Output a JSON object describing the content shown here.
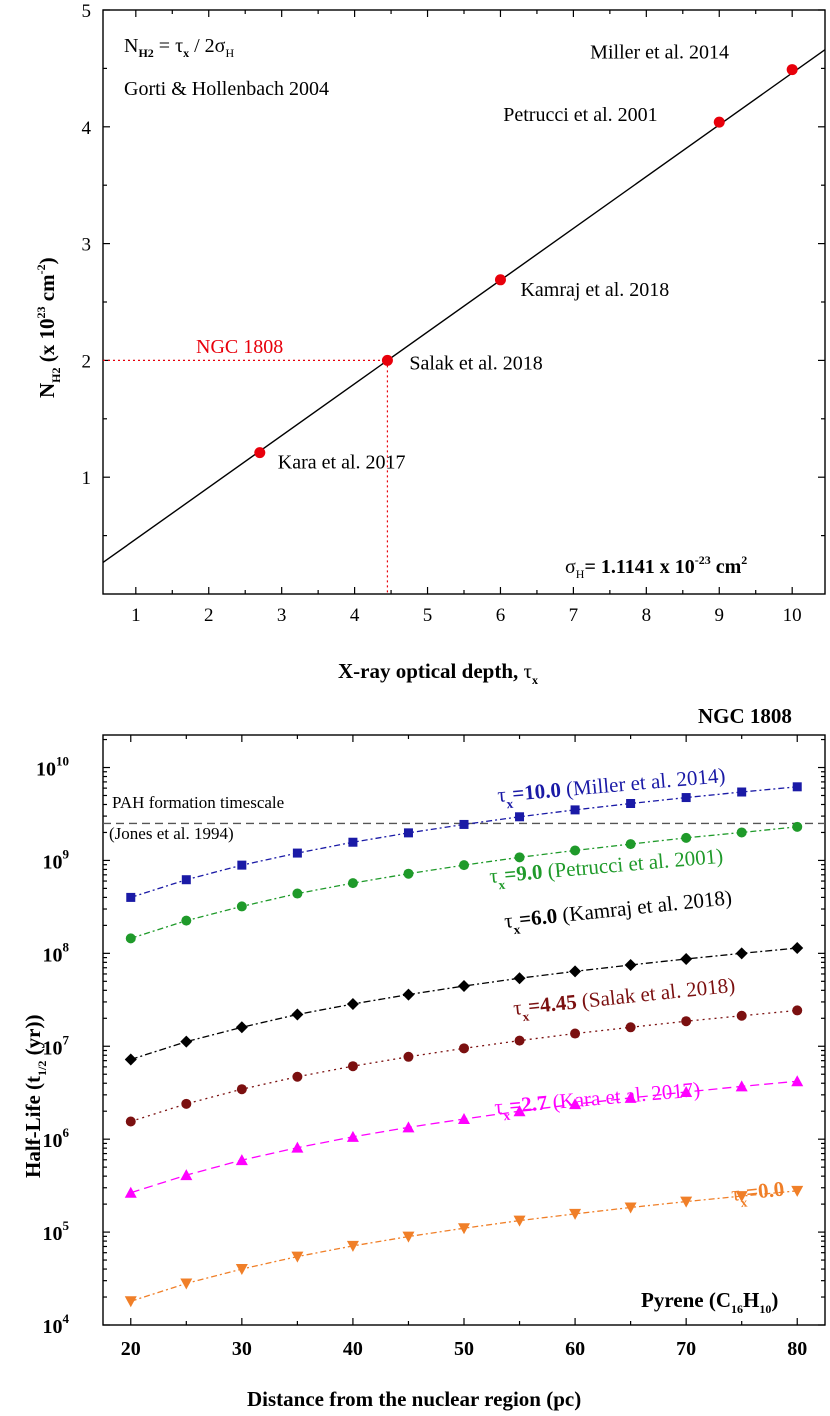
{
  "chart_data": [
    {
      "type": "scatter",
      "xlabel_main": "X-ray optical depth, ",
      "xlabel_symbol": "τ",
      "xlabel_sub": "x",
      "ylabel": {
        "n": "N",
        "sub": "H2",
        "mid": " (x 10",
        "sup": "23",
        "unit": " cm",
        "unitsup": "-2",
        "close": ")"
      },
      "xlim": [
        0.55,
        10.45
      ],
      "ylim": [
        0,
        5
      ],
      "xticks": [
        "1",
        "2",
        "3",
        "4",
        "5",
        "6",
        "7",
        "8",
        "9",
        "10"
      ],
      "yticks": [
        "1",
        "2",
        "3",
        "4",
        "5"
      ],
      "formula": {
        "lhs": "N",
        "lhs_sub": "H2",
        "eq": " = τ",
        "tau_sub": "x",
        "div": " / 2σ",
        "sigma_sub": "H"
      },
      "formula_ref": "Gorti & Hollenbach 2004",
      "sigma_note": {
        "sym": "σ",
        "sub": "H",
        "eq": "= 1.1141 x 10",
        "sup": "-23",
        "unit": " cm",
        "unitsup": "2"
      },
      "fit_line": {
        "x": [
          0.55,
          10.45
        ],
        "y": [
          0.27,
          4.66
        ]
      },
      "points": [
        {
          "x": 2.7,
          "y": 1.21,
          "label": "Kara et al. 2017"
        },
        {
          "x": 4.45,
          "y": 2.0,
          "label": "Salak et al. 2018"
        },
        {
          "x": 6.0,
          "y": 2.69,
          "label": "Kamraj et al. 2018"
        },
        {
          "x": 9.0,
          "y": 4.04,
          "label": "Petrucci et al. 2001"
        },
        {
          "x": 10.0,
          "y": 4.49,
          "label": "Miller et al. 2014"
        }
      ],
      "highlight": {
        "x": 4.45,
        "y": 2.0,
        "label": "NGC 1808",
        "color": "#e8000b"
      },
      "point_color": "#e8000b"
    },
    {
      "type": "line",
      "title": "NGC 1808",
      "xlabel": "Distance from the nuclear region (pc)",
      "ylabel": {
        "pre": "Half-Life (t",
        "sub": "1/2",
        "post": " (yr))"
      },
      "yscale": "log",
      "xlim": [
        17.5,
        82.5
      ],
      "ylim_log10": [
        4,
        10.35
      ],
      "xticks": [
        "20",
        "30",
        "40",
        "50",
        "60",
        "70",
        "80"
      ],
      "yticks": [
        {
          "base": "10",
          "exp": "4"
        },
        {
          "base": "10",
          "exp": "5"
        },
        {
          "base": "10",
          "exp": "6"
        },
        {
          "base": "10",
          "exp": "7"
        },
        {
          "base": "10",
          "exp": "8"
        },
        {
          "base": "10",
          "exp": "9"
        },
        {
          "base": "10",
          "exp": "10"
        }
      ],
      "x": [
        20,
        25,
        30,
        35,
        40,
        45,
        50,
        55,
        60,
        65,
        70,
        75,
        80
      ],
      "reference_line": {
        "value": 2500000000,
        "label1": "PAH formation timescale",
        "label2": "(Jones et al. 1994)"
      },
      "molecule": {
        "pre": "Pyrene (C",
        "sub1": "16",
        "mid": "H",
        "sub2": "10",
        "post": ")"
      },
      "series": [
        {
          "name": "Miller et al. 2014",
          "tau": "=10.0",
          "label": " (Miller et al. 2014)",
          "color": "#1a1aa6",
          "marker": "square",
          "dash": "6 3 2 3",
          "values": [
            400000000.0,
            620000000.0,
            890000000.0,
            1200000000.0,
            1570000000.0,
            1980000000.0,
            2440000000.0,
            2950000000.0,
            3500000000.0,
            4100000000.0,
            4750000000.0,
            5450000000.0,
            6200000000.0
          ]
        },
        {
          "name": "Petrucci et al. 2001",
          "tau": "=9.0",
          "label": " (Petrucci et al. 2001)",
          "color": "#1f9a2a",
          "marker": "circle",
          "dash": "6 3 2 3",
          "values": [
            145000000.0,
            225000000.0,
            320000000.0,
            440000000.0,
            570000000.0,
            720000000.0,
            890000000.0,
            1080000000.0,
            1280000000.0,
            1500000000.0,
            1750000000.0,
            2000000000.0,
            2300000000.0
          ]
        },
        {
          "name": "Kamraj et al. 2018",
          "tau": "=6.0",
          "label": " (Kamraj et al. 2018)",
          "color": "#000000",
          "marker": "diamond",
          "dash": "7 3 2 3",
          "values": [
            7200000.0,
            11200000.0,
            16000000.0,
            22000000.0,
            28500000.0,
            36000000.0,
            44500000.0,
            54000000.0,
            64000000.0,
            75000000.0,
            87000000.0,
            100000000.0,
            114000000.0
          ]
        },
        {
          "name": "Salak et al. 2018",
          "tau": "=4.45",
          "label": " (Salak et al. 2018)",
          "color": "#7b1010",
          "marker": "circle",
          "dash": "2 4",
          "values": [
            1550000.0,
            2400000.0,
            3450000.0,
            4700000.0,
            6100000.0,
            7700000.0,
            9500000.0,
            11500000.0,
            13700000.0,
            16000000.0,
            18600000.0,
            21300000.0,
            24300000.0
          ]
        },
        {
          "name": "Kara et al. 2017",
          "tau": "=2.7",
          "label": " (Kara et al. 2017)",
          "color": "#ff00ff",
          "marker": "triangle-up",
          "dash": "9 5",
          "values": [
            265000.0,
            410000.0,
            595000.0,
            810000.0,
            1060000.0,
            1340000.0,
            1650000.0,
            2000000.0,
            2380000.0,
            2780000.0,
            3220000.0,
            3700000.0,
            4200000.0
          ]
        },
        {
          "name": "τx=0.0",
          "tau": "=0.0",
          "label": "",
          "color": "#f07f28",
          "marker": "triangle-down",
          "dash": "6 3 2 3",
          "values": [
            18000.0,
            28000.0,
            40000.0,
            54500.0,
            71000.0,
            89500.0,
            110000.0,
            133000.0,
            157000.0,
            184000.0,
            213000.0,
            244000.0,
            278000.0
          ]
        }
      ]
    }
  ]
}
